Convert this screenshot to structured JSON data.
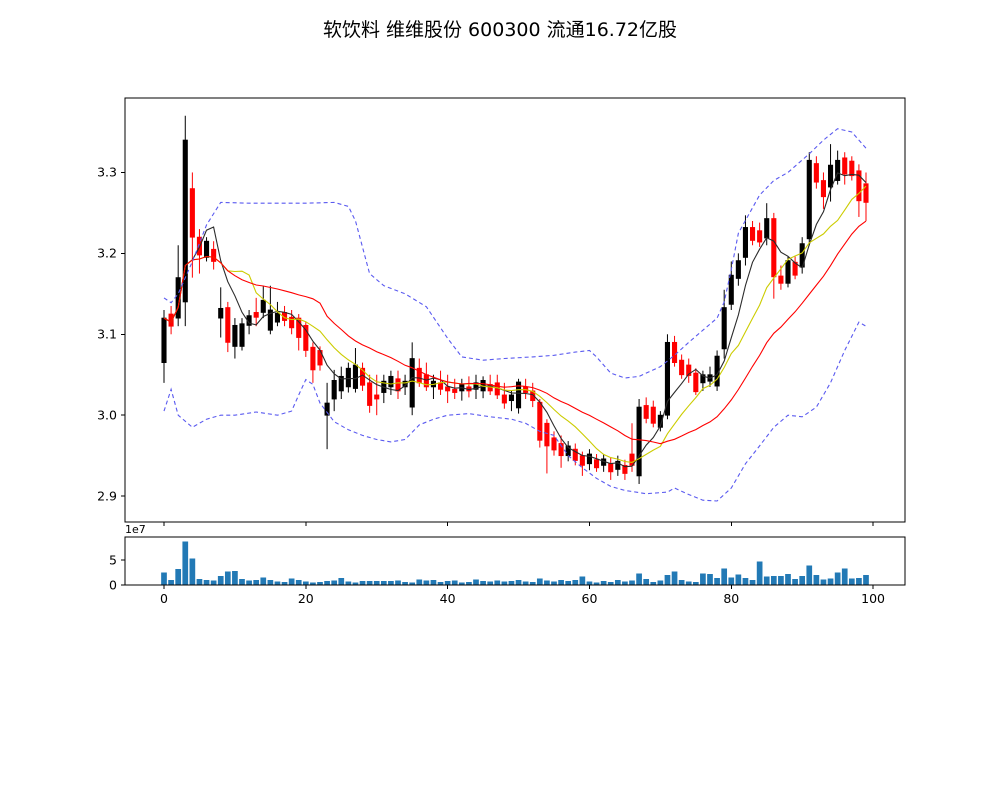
{
  "title": "软饮料  维维股份  600300  流通16.72亿股",
  "colors": {
    "up_candle": "#000000",
    "down_candle": "#ff0000",
    "ma_fast": "#2b2b2b",
    "ma_mid": "#cccc00",
    "ma_slow": "#ff0000",
    "band": "#5a5af0",
    "volume_bar": "#2279b5",
    "frame": "#000000",
    "background": "#ffffff"
  },
  "chart_data": {
    "type": "candlestick+volume",
    "title": "软饮料  维维股份  600300  流通16.72亿股",
    "price_axis": {
      "tick_labels": [
        "2.9",
        "3.0",
        "3.1",
        "3.2",
        "3.3"
      ],
      "ticks": [
        2.9,
        3.0,
        3.1,
        3.2,
        3.3
      ],
      "range": [
        2.868,
        3.392
      ]
    },
    "x_axis": {
      "tick_labels": [
        "0",
        "20",
        "40",
        "60",
        "80",
        "100"
      ],
      "ticks": [
        0,
        20,
        40,
        60,
        80,
        100
      ],
      "range": [
        -5.5,
        104.5
      ]
    },
    "volume_axis": {
      "tick_labels": [
        "0",
        "5"
      ],
      "ticks": [
        0,
        5
      ],
      "scale_label": "1e7",
      "range": [
        0,
        9.6
      ]
    },
    "legend": "off",
    "grid": "off",
    "ohlc": [
      [
        3.065,
        3.13,
        3.04,
        3.12
      ],
      [
        3.125,
        3.135,
        3.1,
        3.11
      ],
      [
        3.12,
        3.21,
        3.11,
        3.17
      ],
      [
        3.14,
        3.37,
        3.11,
        3.34
      ],
      [
        3.28,
        3.3,
        3.17,
        3.22
      ],
      [
        3.22,
        3.23,
        3.175,
        3.198
      ],
      [
        3.195,
        3.22,
        3.19,
        3.215
      ],
      [
        3.205,
        3.215,
        3.18,
        3.19
      ],
      [
        3.12,
        3.158,
        3.096,
        3.132
      ],
      [
        3.133,
        3.14,
        3.078,
        3.09
      ],
      [
        3.085,
        3.12,
        3.07,
        3.111
      ],
      [
        3.085,
        3.12,
        3.08,
        3.113
      ],
      [
        3.111,
        3.13,
        3.1,
        3.123
      ],
      [
        3.127,
        3.145,
        3.11,
        3.121
      ],
      [
        3.127,
        3.16,
        3.12,
        3.142
      ],
      [
        3.105,
        3.16,
        3.1,
        3.13
      ],
      [
        3.115,
        3.14,
        3.11,
        3.126
      ],
      [
        3.127,
        3.135,
        3.11,
        3.117
      ],
      [
        3.121,
        3.13,
        3.1,
        3.108
      ],
      [
        3.12,
        3.125,
        3.08,
        3.096
      ],
      [
        3.111,
        3.115,
        3.072,
        3.08
      ],
      [
        3.084,
        3.09,
        3.04,
        3.056
      ],
      [
        3.08,
        3.085,
        3.055,
        3.062
      ],
      [
        3.0,
        3.04,
        2.958,
        3.015
      ],
      [
        3.02,
        3.056,
        3.005,
        3.043
      ],
      [
        3.03,
        3.06,
        3.02,
        3.048
      ],
      [
        3.035,
        3.065,
        3.028,
        3.058
      ],
      [
        3.033,
        3.083,
        3.028,
        3.062
      ],
      [
        3.058,
        3.065,
        3.03,
        3.037
      ],
      [
        3.04,
        3.05,
        3.003,
        3.012
      ],
      [
        3.025,
        3.05,
        3.0,
        3.02
      ],
      [
        3.028,
        3.05,
        3.015,
        3.042
      ],
      [
        3.035,
        3.055,
        3.025,
        3.048
      ],
      [
        3.045,
        3.055,
        3.02,
        3.03
      ],
      [
        3.035,
        3.05,
        3.025,
        3.042
      ],
      [
        3.01,
        3.09,
        3.0,
        3.07
      ],
      [
        3.058,
        3.07,
        3.035,
        3.04
      ],
      [
        3.05,
        3.065,
        3.03,
        3.035
      ],
      [
        3.035,
        3.05,
        3.02,
        3.042
      ],
      [
        3.04,
        3.055,
        3.025,
        3.032
      ],
      [
        3.035,
        3.05,
        3.015,
        3.03
      ],
      [
        3.032,
        3.045,
        3.02,
        3.028
      ],
      [
        3.03,
        3.045,
        3.018,
        3.038
      ],
      [
        3.035,
        3.048,
        3.022,
        3.03
      ],
      [
        3.032,
        3.05,
        3.02,
        3.04
      ],
      [
        3.03,
        3.048,
        3.021,
        3.043
      ],
      [
        3.038,
        3.05,
        3.025,
        3.03
      ],
      [
        3.04,
        3.05,
        3.02,
        3.025
      ],
      [
        3.025,
        3.04,
        3.008,
        3.015
      ],
      [
        3.018,
        3.03,
        3.005,
        3.025
      ],
      [
        3.009,
        3.045,
        3.002,
        3.041
      ],
      [
        3.035,
        3.045,
        3.02,
        3.028
      ],
      [
        3.03,
        3.04,
        3.01,
        3.018
      ],
      [
        3.016,
        3.02,
        2.96,
        2.969
      ],
      [
        2.99,
        2.995,
        2.928,
        2.962
      ],
      [
        2.972,
        2.98,
        2.95,
        2.957
      ],
      [
        2.965,
        2.975,
        2.935,
        2.95
      ],
      [
        2.95,
        2.968,
        2.943,
        2.962
      ],
      [
        2.958,
        2.965,
        2.938,
        2.944
      ],
      [
        2.95,
        2.955,
        2.925,
        2.938
      ],
      [
        2.94,
        2.958,
        2.932,
        2.952
      ],
      [
        2.945,
        2.952,
        2.93,
        2.935
      ],
      [
        2.938,
        2.952,
        2.93,
        2.946
      ],
      [
        2.94,
        2.948,
        2.92,
        2.93
      ],
      [
        2.933,
        2.95,
        2.925,
        2.943
      ],
      [
        2.938,
        2.945,
        2.92,
        2.928
      ],
      [
        2.952,
        2.99,
        2.93,
        2.938
      ],
      [
        2.925,
        3.02,
        2.915,
        3.01
      ],
      [
        3.012,
        3.022,
        2.99,
        2.996
      ],
      [
        3.01,
        3.018,
        2.985,
        2.99
      ],
      [
        2.985,
        3.005,
        2.98,
        3.0
      ],
      [
        3.0,
        3.1,
        2.995,
        3.09
      ],
      [
        3.09,
        3.098,
        3.06,
        3.065
      ],
      [
        3.068,
        3.075,
        3.045,
        3.05
      ],
      [
        3.062,
        3.07,
        3.04,
        3.049
      ],
      [
        3.052,
        3.058,
        3.025,
        3.029
      ],
      [
        3.04,
        3.055,
        3.03,
        3.05
      ],
      [
        3.042,
        3.06,
        3.035,
        3.05
      ],
      [
        3.036,
        3.08,
        3.03,
        3.073
      ],
      [
        3.082,
        3.155,
        3.07,
        3.133
      ],
      [
        3.137,
        3.19,
        3.13,
        3.173
      ],
      [
        3.169,
        3.2,
        3.16,
        3.191
      ],
      [
        3.195,
        3.247,
        3.185,
        3.232
      ],
      [
        3.232,
        3.24,
        3.21,
        3.216
      ],
      [
        3.228,
        3.238,
        3.208,
        3.214
      ],
      [
        3.219,
        3.262,
        3.21,
        3.243
      ],
      [
        3.243,
        3.25,
        3.144,
        3.171
      ],
      [
        3.172,
        3.185,
        3.155,
        3.163
      ],
      [
        3.163,
        3.196,
        3.158,
        3.191
      ],
      [
        3.189,
        3.196,
        3.168,
        3.173
      ],
      [
        3.183,
        3.22,
        3.175,
        3.212
      ],
      [
        3.218,
        3.325,
        3.21,
        3.315
      ],
      [
        3.311,
        3.32,
        3.28,
        3.288
      ],
      [
        3.29,
        3.3,
        3.255,
        3.27
      ],
      [
        3.282,
        3.335,
        3.264,
        3.309
      ],
      [
        3.29,
        3.327,
        3.285,
        3.315
      ],
      [
        3.318,
        3.325,
        3.285,
        3.298
      ],
      [
        3.314,
        3.32,
        3.29,
        3.296
      ],
      [
        3.302,
        3.31,
        3.245,
        3.265
      ],
      [
        3.286,
        3.3,
        3.24,
        3.263
      ]
    ],
    "volume_1e7": [
      2.5,
      1.0,
      3.2,
      8.7,
      5.3,
      1.2,
      1.0,
      0.9,
      1.8,
      2.7,
      2.8,
      1.2,
      0.9,
      1.0,
      1.5,
      1.0,
      0.7,
      0.6,
      1.3,
      1.0,
      0.7,
      0.5,
      0.6,
      0.8,
      0.9,
      1.4,
      0.7,
      0.5,
      0.8,
      0.8,
      0.8,
      0.8,
      0.8,
      0.9,
      0.6,
      0.5,
      1.1,
      0.9,
      1.0,
      0.6,
      0.8,
      0.9,
      0.5,
      0.6,
      1.1,
      0.8,
      0.7,
      0.9,
      0.7,
      0.8,
      1.0,
      0.7,
      0.6,
      1.3,
      0.9,
      0.7,
      1.0,
      0.8,
      1.0,
      1.7,
      0.7,
      0.5,
      0.8,
      0.6,
      1.0,
      0.7,
      0.9,
      2.3,
      1.2,
      0.6,
      0.9,
      2.0,
      2.7,
      1.0,
      0.7,
      0.6,
      2.3,
      2.2,
      1.4,
      3.3,
      1.5,
      2.1,
      1.4,
      1.0,
      4.7,
      1.7,
      1.8,
      1.8,
      2.2,
      1.2,
      1.8,
      3.9,
      2.0,
      1.1,
      1.3,
      2.5,
      3.3,
      1.3,
      1.4,
      2.0
    ],
    "overlays": {
      "moving_averages": [
        {
          "name": "ma-fast",
          "window": 5,
          "color_key": "ma_fast",
          "style": "solid"
        },
        {
          "name": "ma-mid",
          "window": 10,
          "color_key": "ma_mid",
          "style": "solid"
        },
        {
          "name": "ma-slow",
          "window": 20,
          "color_key": "ma_slow",
          "style": "solid"
        }
      ],
      "band_upper": {
        "style": "dashed",
        "x": [
          0,
          1,
          2,
          4,
          6,
          8,
          12,
          16,
          20,
          24,
          26,
          27,
          29,
          31,
          34,
          37,
          40,
          42,
          45,
          48,
          52,
          55,
          58,
          60,
          61,
          63,
          65,
          67,
          70,
          72,
          74,
          76,
          78,
          79,
          80,
          81,
          84,
          86,
          88,
          91,
          93,
          95,
          97,
          99
        ],
        "y": [
          3.145,
          3.139,
          3.15,
          3.19,
          3.235,
          3.263,
          3.262,
          3.262,
          3.262,
          3.263,
          3.258,
          3.24,
          3.175,
          3.16,
          3.15,
          3.134,
          3.095,
          3.072,
          3.068,
          3.07,
          3.072,
          3.074,
          3.078,
          3.08,
          3.072,
          3.052,
          3.046,
          3.048,
          3.06,
          3.074,
          3.09,
          3.105,
          3.12,
          3.14,
          3.18,
          3.225,
          3.272,
          3.29,
          3.3,
          3.323,
          3.34,
          3.354,
          3.35,
          3.33
        ]
      },
      "band_lower": {
        "style": "dashed",
        "x": [
          0,
          1,
          2,
          4,
          6,
          8,
          10,
          13,
          16,
          18,
          19,
          20,
          21,
          22,
          24,
          26,
          28,
          30,
          32,
          34,
          36,
          38,
          40,
          43,
          46,
          49,
          51,
          53,
          55,
          57,
          59,
          61,
          63,
          65,
          68,
          71,
          72,
          74,
          76,
          78,
          80,
          82,
          84,
          86,
          88,
          90,
          92,
          94,
          96,
          98,
          99
        ],
        "y": [
          3.005,
          3.032,
          3.0,
          2.985,
          2.995,
          3.0,
          3.0,
          3.004,
          3.0,
          3.005,
          3.025,
          3.044,
          3.038,
          3.015,
          2.992,
          2.982,
          2.975,
          2.97,
          2.967,
          2.97,
          2.988,
          2.995,
          3.0,
          3.002,
          2.998,
          2.995,
          2.99,
          2.98,
          2.975,
          2.95,
          2.935,
          2.922,
          2.912,
          2.907,
          2.903,
          2.905,
          2.91,
          2.902,
          2.895,
          2.894,
          2.91,
          2.94,
          2.962,
          2.985,
          3.0,
          2.998,
          3.01,
          3.04,
          3.08,
          3.115,
          3.11
        ]
      }
    }
  }
}
